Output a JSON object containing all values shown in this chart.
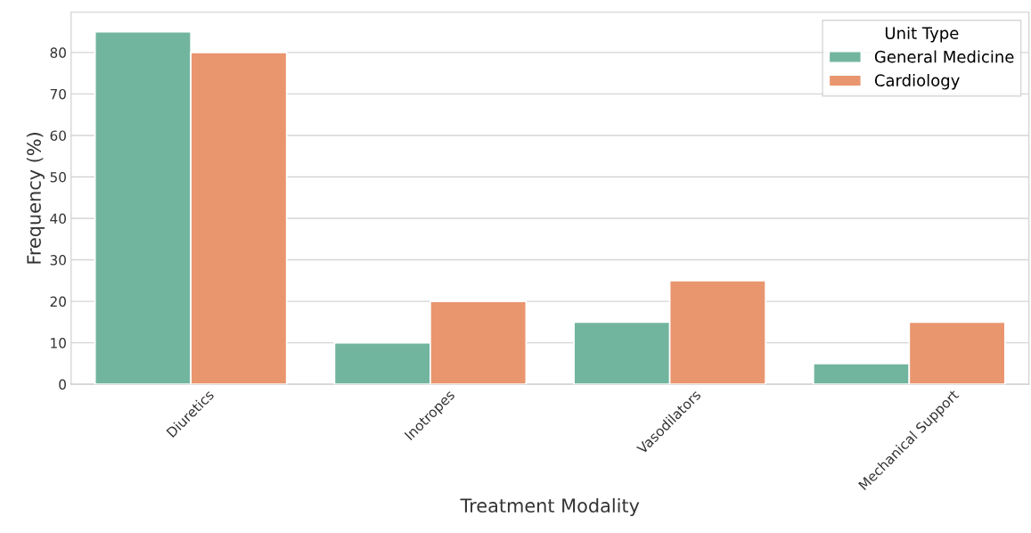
{
  "chart_data": {
    "type": "bar",
    "xlabel": "Treatment Modality",
    "ylabel": "Frequency (%)",
    "legend_title": "Unit Type",
    "categories": [
      "Diuretics",
      "Inotropes",
      "Vasodilators",
      "Mechanical Support"
    ],
    "series": [
      {
        "name": "General Medicine",
        "color": "#72b59f",
        "values": [
          85,
          10,
          15,
          5
        ]
      },
      {
        "name": "Cardiology",
        "color": "#e9966f",
        "values": [
          80,
          20,
          25,
          15
        ]
      }
    ],
    "ylim": [
      0,
      89.7
    ],
    "yticks": [
      0,
      10,
      20,
      30,
      40,
      50,
      60,
      70,
      80
    ],
    "grid": "y",
    "legend": "top right"
  }
}
